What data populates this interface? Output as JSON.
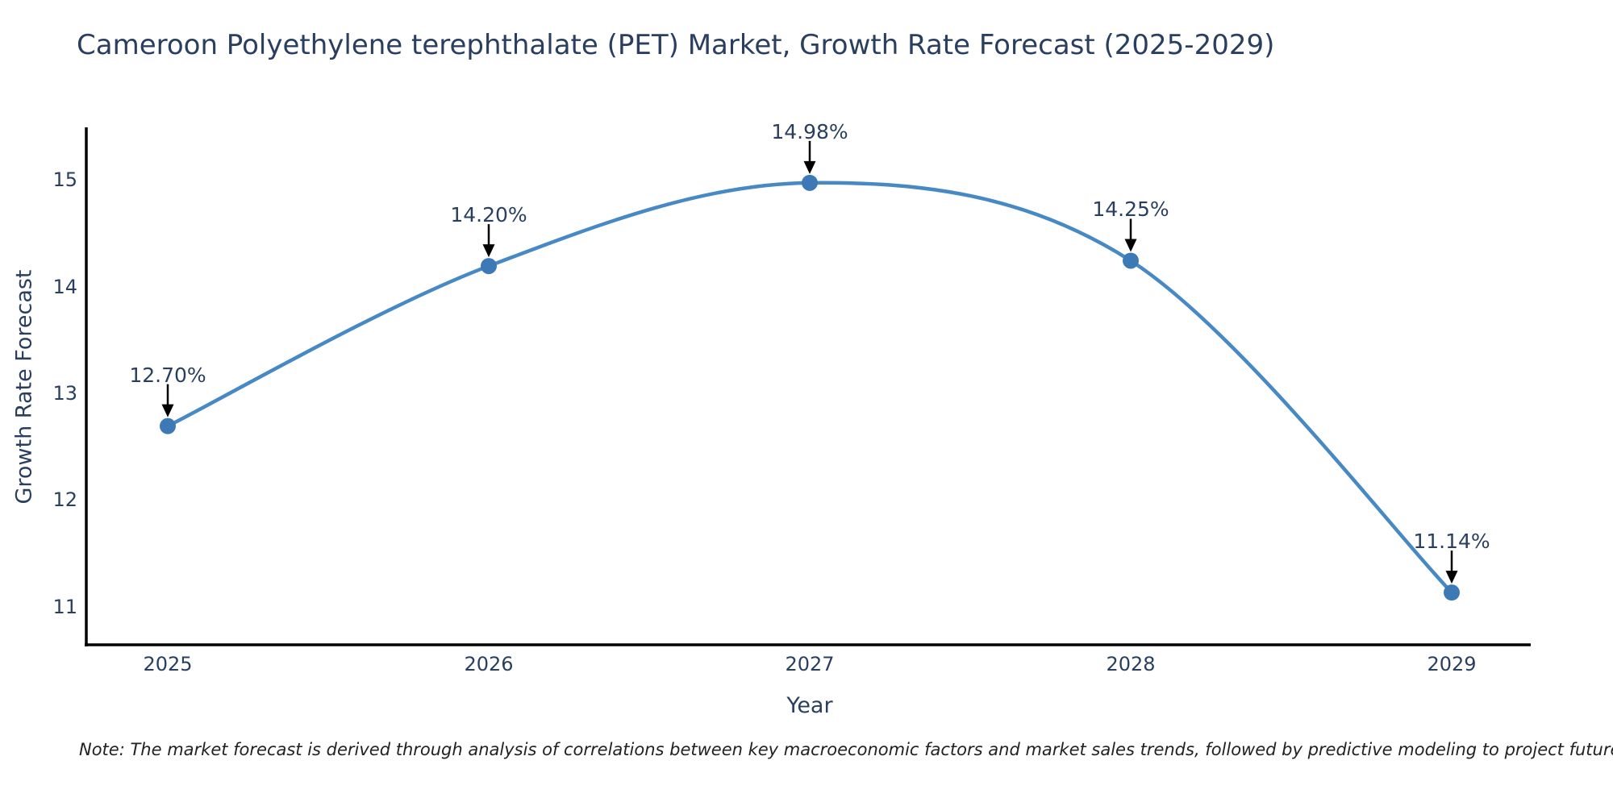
{
  "note": "Note: The market forecast is derived through analysis of correlations between key macroeconomic factors and market sales trends, followed by predictive modeling to project future sales",
  "chart_data": {
    "type": "line",
    "title": "Cameroon Polyethylene terephthalate (PET) Market, Growth Rate Forecast (2025-2029)",
    "xlabel": "Year",
    "ylabel": "Growth Rate Forecast",
    "categories": [
      "2025",
      "2026",
      "2027",
      "2028",
      "2029"
    ],
    "values": [
      12.7,
      14.2,
      14.98,
      14.25,
      11.14
    ],
    "point_labels": [
      "12.70%",
      "14.20%",
      "14.98%",
      "14.25%",
      "11.14%"
    ],
    "yticks": [
      11,
      12,
      13,
      14,
      15
    ],
    "ylim": [
      10.65,
      15.5
    ],
    "line_shape": "spline",
    "grid": false,
    "legend_position": "none",
    "colors": {
      "line": "#4789c4",
      "marker": "#3d7ab5",
      "axis": "#000000",
      "arrow": "#000000",
      "text": "#2a3f5f",
      "note_text": "#222222"
    }
  }
}
